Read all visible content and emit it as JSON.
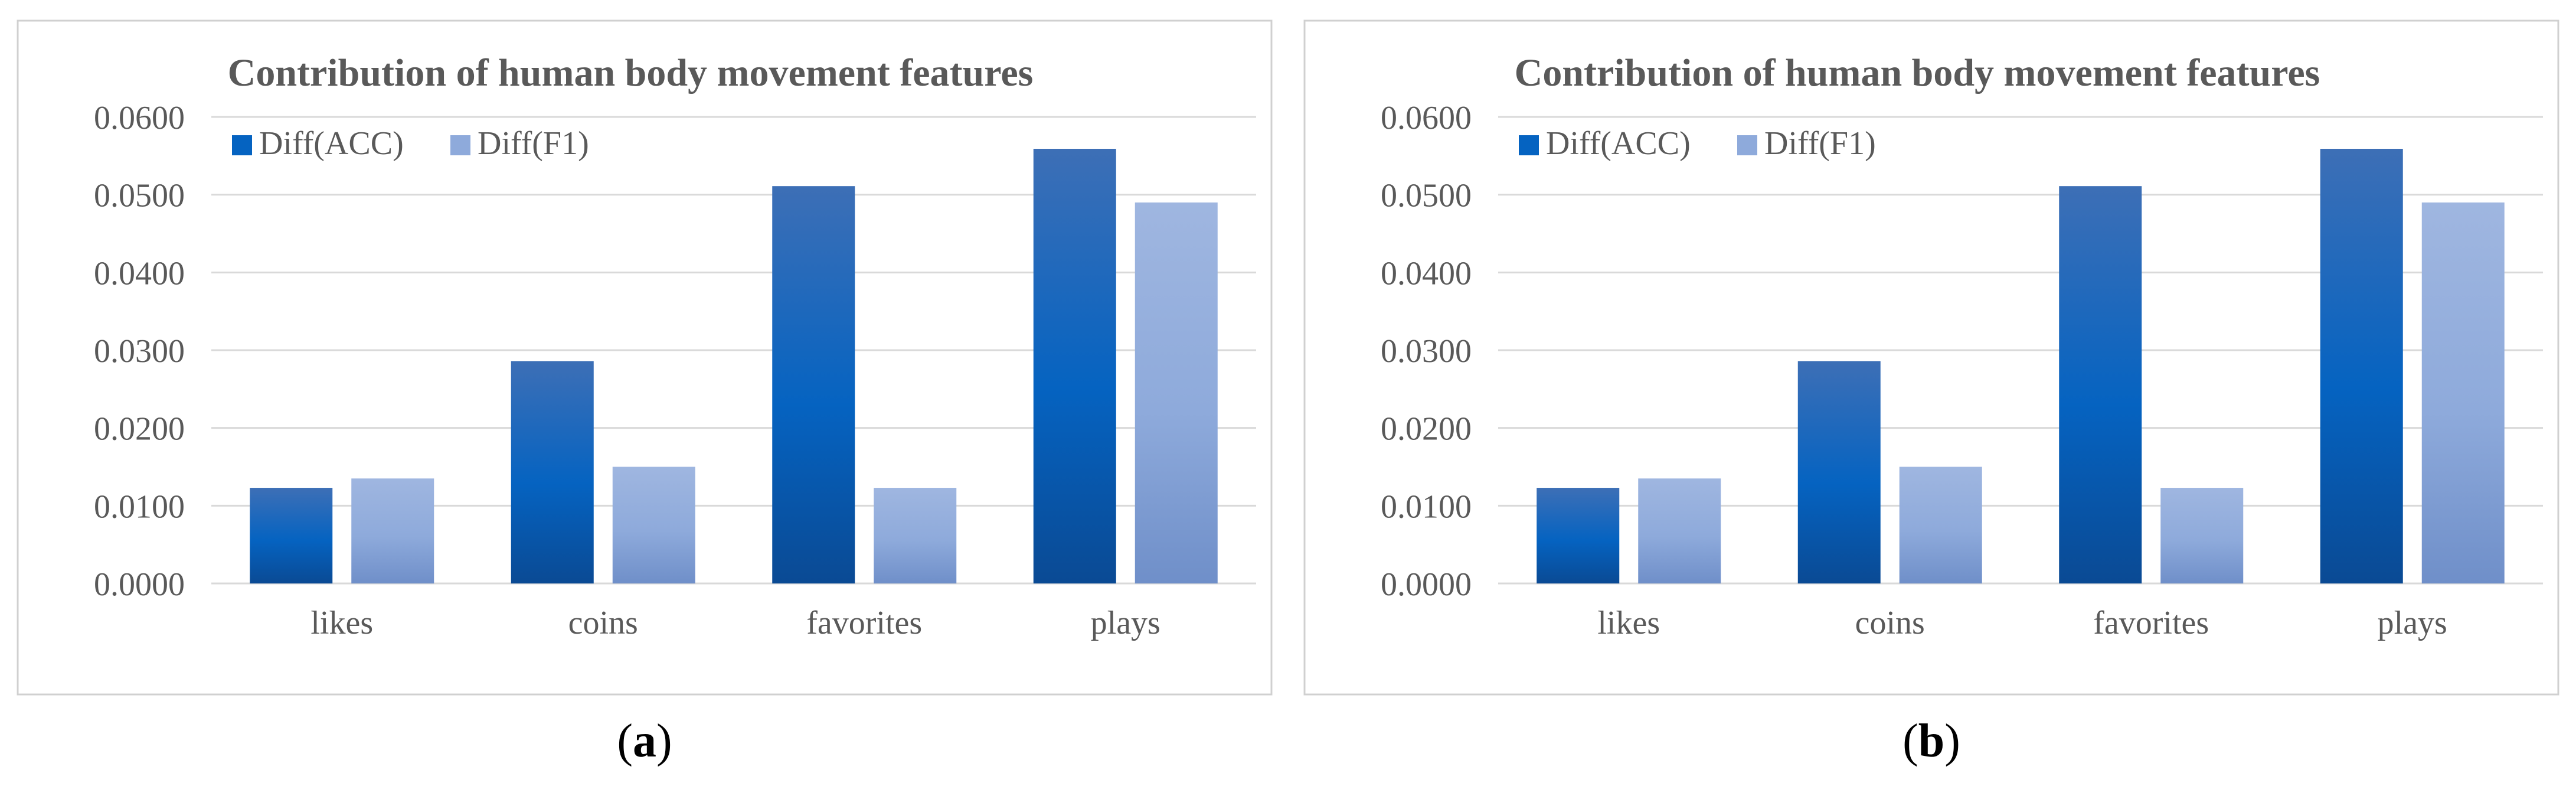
{
  "colors": {
    "acc_top": "#3d6fb6",
    "acc_mid": "#0563c1",
    "acc_bottom": "#0a4a94",
    "f1_top": "#9fb6e0",
    "f1_mid": "#8eaadb",
    "f1_bottom": "#6f8fc9",
    "grid": "#d9d9d9",
    "frame": "#d0d0d0",
    "text": "#595959",
    "title": "#595959"
  },
  "captions": [
    {
      "open": "(",
      "label": "a",
      "close": ")"
    },
    {
      "open": "(",
      "label": "b",
      "close": ")"
    }
  ],
  "chart_data": [
    {
      "type": "bar",
      "title": "Contribution of human body movement features",
      "xlabel": "",
      "ylabel": "",
      "categories": [
        "likes",
        "coins",
        "favorites",
        "plays"
      ],
      "series": [
        {
          "name": "Diff(ACC)",
          "values": [
            0.0123,
            0.0286,
            0.0511,
            0.0559
          ]
        },
        {
          "name": "Diff(F1)",
          "values": [
            0.0135,
            0.015,
            0.0123,
            0.049
          ]
        }
      ],
      "ylim": [
        0,
        0.06
      ],
      "yticks": [
        "0.0000",
        "0.0100",
        "0.0200",
        "0.0300",
        "0.0400",
        "0.0500",
        "0.0600"
      ],
      "grid": true,
      "legend": "top-left"
    },
    {
      "type": "bar",
      "title": "Contribution of human body movement features",
      "xlabel": "",
      "ylabel": "",
      "categories": [
        "likes",
        "coins",
        "favorites",
        "plays"
      ],
      "series": [
        {
          "name": "Diff(ACC)",
          "values": [
            0.0123,
            0.0286,
            0.0511,
            0.0559
          ]
        },
        {
          "name": "Diff(F1)",
          "values": [
            0.0135,
            0.015,
            0.0123,
            0.049
          ]
        }
      ],
      "ylim": [
        0,
        0.06
      ],
      "yticks": [
        "0.0000",
        "0.0100",
        "0.0200",
        "0.0300",
        "0.0400",
        "0.0500",
        "0.0600"
      ],
      "grid": true,
      "legend": "top-left"
    }
  ]
}
